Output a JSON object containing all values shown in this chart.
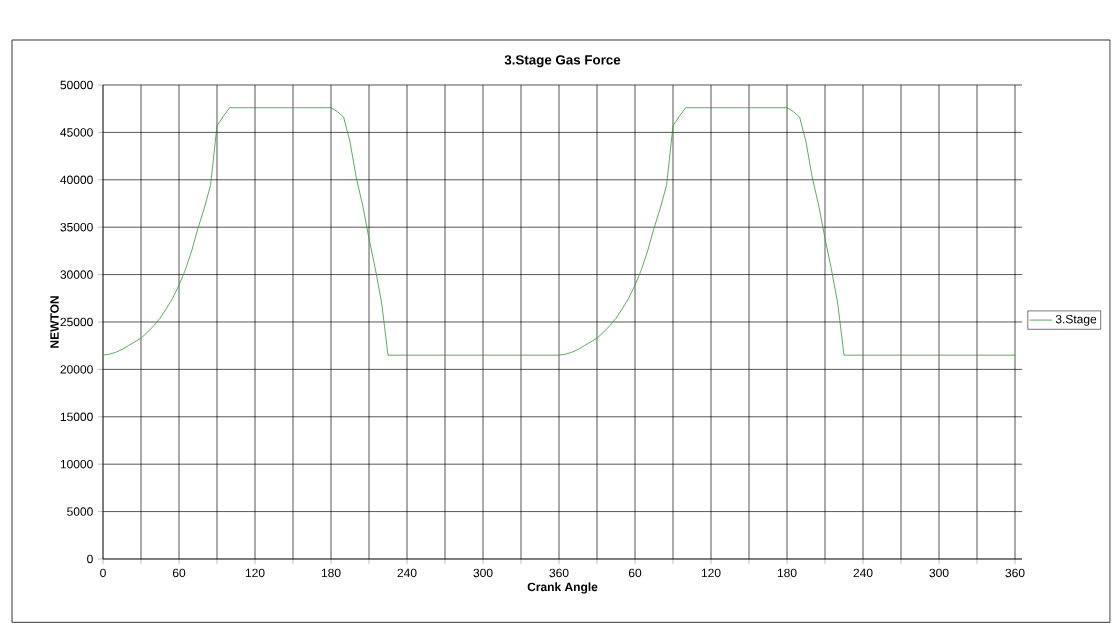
{
  "chart_data": {
    "type": "line",
    "title": "3.Stage Gas Force",
    "xlabel": "Crank Angle",
    "ylabel": "NEWTON",
    "categories": [
      "0",
      null,
      null,
      null,
      null,
      null,
      null,
      null,
      null,
      null,
      null,
      null,
      "60",
      null,
      null,
      null,
      null,
      null,
      null,
      null,
      null,
      null,
      null,
      null,
      "120",
      null,
      null,
      null,
      null,
      null,
      null,
      null,
      null,
      null,
      null,
      null,
      "180",
      null,
      null,
      null,
      null,
      null,
      null,
      null,
      null,
      null,
      null,
      null,
      "240",
      null,
      null,
      null,
      null,
      null,
      null,
      null,
      null,
      null,
      null,
      null,
      "300",
      null,
      null,
      null,
      null,
      null,
      null,
      null,
      null,
      null,
      null,
      null,
      "360",
      null,
      null,
      null,
      null,
      null,
      null,
      null,
      null,
      null,
      null,
      null,
      "60",
      null,
      null,
      null,
      null,
      null,
      null,
      null,
      null,
      null,
      null,
      null,
      "120",
      null,
      null,
      null,
      null,
      null,
      null,
      null,
      null,
      null,
      null,
      null,
      "180",
      null,
      null,
      null,
      null,
      null,
      null,
      null,
      null,
      null,
      null,
      null,
      "240",
      null,
      null,
      null,
      null,
      null,
      null,
      null,
      null,
      null,
      null,
      null,
      "300",
      null,
      null,
      null,
      null,
      null,
      null,
      null,
      null,
      null,
      null,
      null,
      "360"
    ],
    "series": [
      {
        "name": "3.Stage",
        "color": "#339933",
        "values": [
          21500,
          21600,
          21800,
          22100,
          22500,
          22900,
          23300,
          23900,
          24600,
          25400,
          26400,
          27500,
          28900,
          30500,
          32500,
          34900,
          37000,
          39500,
          45700,
          46700,
          47600,
          47600,
          47600,
          47600,
          47600,
          47600,
          47600,
          47600,
          47600,
          47600,
          47600,
          47600,
          47600,
          47600,
          47600,
          47600,
          47600,
          47200,
          46600,
          44000,
          40200,
          37300,
          33800,
          30600,
          27000,
          21500,
          21500,
          21500,
          21500,
          21500,
          21500,
          21500,
          21500,
          21500,
          21500,
          21500,
          21500,
          21500,
          21500,
          21500,
          21500,
          21500,
          21500,
          21500,
          21500,
          21500,
          21500,
          21500,
          21500,
          21500,
          21500,
          21500,
          21500,
          21600,
          21800,
          22100,
          22500,
          22900,
          23300,
          23900,
          24600,
          25400,
          26400,
          27500,
          28900,
          30500,
          32500,
          34900,
          37000,
          39500,
          45700,
          46700,
          47600,
          47600,
          47600,
          47600,
          47600,
          47600,
          47600,
          47600,
          47600,
          47600,
          47600,
          47600,
          47600,
          47600,
          47600,
          47600,
          47600,
          47200,
          46600,
          44000,
          40200,
          37300,
          33800,
          30600,
          27000,
          21500,
          21500,
          21500,
          21500,
          21500,
          21500,
          21500,
          21500,
          21500,
          21500,
          21500,
          21500,
          21500,
          21500,
          21500,
          21500,
          21500,
          21500,
          21500,
          21500,
          21500,
          21500,
          21500,
          21500,
          21500,
          21500,
          21500,
          21500
        ]
      }
    ],
    "ylim": [
      0,
      50000
    ],
    "yticks": [
      0,
      5000,
      10000,
      15000,
      20000,
      25000,
      30000,
      35000,
      40000,
      45000,
      50000
    ],
    "grid": true,
    "legend": "right"
  }
}
